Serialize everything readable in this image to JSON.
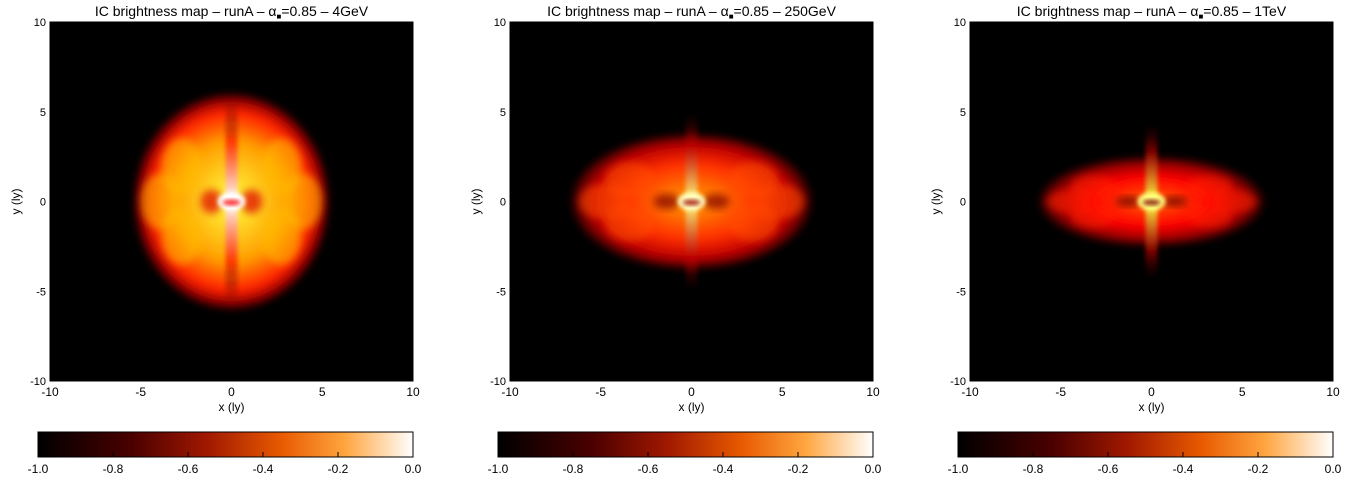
{
  "figure": {
    "panels": [
      {
        "title": "IC brightness map – runA – α",
        "title_sub": "■",
        "title_rest": "=0.85 – 4GeV",
        "xlabel": "x (ly)",
        "ylabel": "y (ly)",
        "colorbar_ticks": [
          "-1.0",
          "-0.8",
          "-0.6",
          "-0.4",
          "-0.2",
          "0.0"
        ]
      },
      {
        "title": "IC brightness map – runA – α",
        "title_sub": "■",
        "title_rest": "=0.85 – 250GeV",
        "xlabel": "x (ly)",
        "ylabel": "y (ly)",
        "colorbar_ticks": [
          "-1.0",
          "-0.8",
          "-0.6",
          "-0.4",
          "-0.2",
          "0.0"
        ]
      },
      {
        "title": "IC brightness map – runA – α",
        "title_sub": "■",
        "title_rest": "=0.85 – 1TeV",
        "xlabel": "x (ly)",
        "ylabel": "y (ly)",
        "colorbar_ticks": [
          "-1.0",
          "-0.8",
          "-0.6",
          "-0.4",
          "-0.2",
          "0.0"
        ]
      }
    ]
  },
  "chart_data": [
    {
      "type": "heatmap",
      "title": "IC brightness map – runA – α■=0.85 – 4GeV",
      "xlabel": "x (ly)",
      "ylabel": "y (ly)",
      "xlim": [
        -10,
        10
      ],
      "ylim": [
        -10,
        10
      ],
      "xticks": [
        -10,
        -5,
        0,
        5,
        10
      ],
      "yticks": [
        -10,
        -5,
        0,
        5,
        10
      ],
      "colorbar": {
        "range": [
          -1.0,
          0.0
        ],
        "ticks": [
          -1.0,
          -0.8,
          -0.6,
          -0.4,
          -0.2,
          0.0
        ],
        "colormap": "hot",
        "placement": "bottom"
      },
      "nebula": {
        "x_half_width": 5.0,
        "y_half_height": 5.6,
        "jet_half_length": 5.6,
        "peak_level": 0.0,
        "core_level": -0.15,
        "edge_level": -0.55,
        "background_level": -1.0
      }
    },
    {
      "type": "heatmap",
      "title": "IC brightness map – runA – α■=0.85 – 250GeV",
      "xlabel": "x (ly)",
      "ylabel": "y (ly)",
      "xlim": [
        -10,
        10
      ],
      "ylim": [
        -10,
        10
      ],
      "xticks": [
        -10,
        -5,
        0,
        5,
        10
      ],
      "yticks": [
        -10,
        -5,
        0,
        5,
        10
      ],
      "colorbar": {
        "range": [
          -1.0,
          0.0
        ],
        "ticks": [
          -1.0,
          -0.8,
          -0.6,
          -0.4,
          -0.2,
          0.0
        ],
        "colormap": "hot",
        "placement": "bottom"
      },
      "nebula": {
        "x_half_width": 6.2,
        "y_half_height": 3.5,
        "jet_half_length": 5.2,
        "peak_level": -0.1,
        "core_level": -0.35,
        "edge_level": -0.7,
        "background_level": -1.0
      }
    },
    {
      "type": "heatmap",
      "title": "IC brightness map – runA – α■=0.85 – 1TeV",
      "xlabel": "x (ly)",
      "ylabel": "y (ly)",
      "xlim": [
        -10,
        10
      ],
      "ylim": [
        -10,
        10
      ],
      "xticks": [
        -10,
        -5,
        0,
        5,
        10
      ],
      "yticks": [
        -10,
        -5,
        0,
        5,
        10
      ],
      "colorbar": {
        "range": [
          -1.0,
          0.0
        ],
        "ticks": [
          -1.0,
          -0.8,
          -0.6,
          -0.4,
          -0.2,
          0.0
        ],
        "colormap": "hot",
        "placement": "bottom"
      },
      "nebula": {
        "x_half_width": 5.8,
        "y_half_height": 2.3,
        "jet_half_length": 4.6,
        "peak_level": -0.15,
        "core_level": -0.45,
        "edge_level": -0.75,
        "background_level": -1.0
      }
    }
  ]
}
